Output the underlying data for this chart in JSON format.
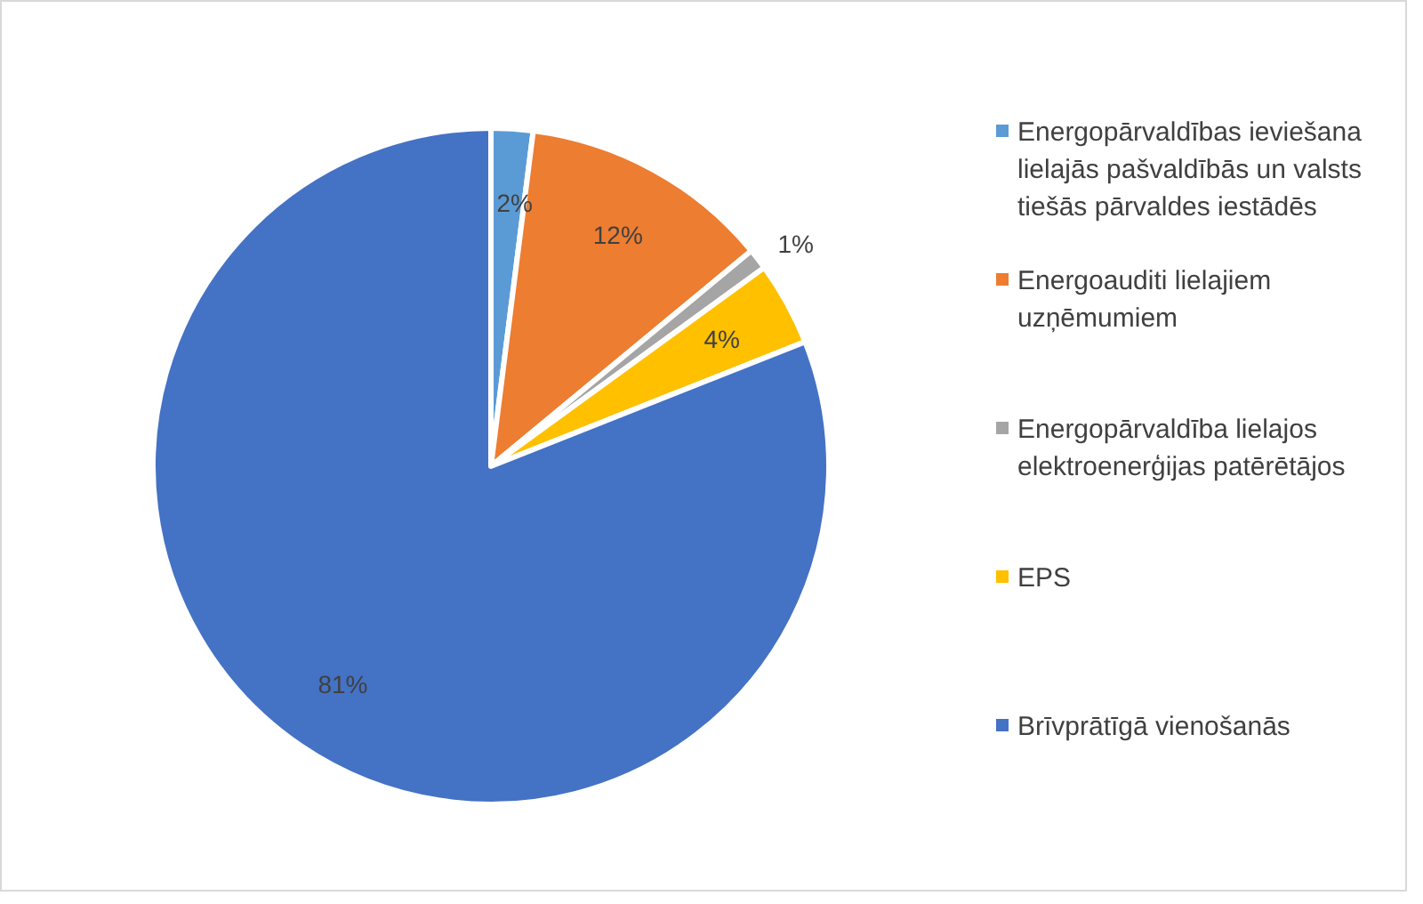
{
  "chart_data": {
    "type": "pie",
    "categories": [
      "Energopārvaldības ieviešana lielajās pašvaldībās un valsts tiešās pārvaldes iestādēs",
      "Energoauditi lielajiem uzņēmumiem",
      "Energopārvaldība lielajos elektroenerģijas patērētājos",
      "EPS",
      "Brīvprātīgā vienošanās"
    ],
    "values": [
      2,
      12,
      1,
      4,
      81
    ],
    "colors": [
      "#5b9bd5",
      "#ed7d31",
      "#a5a5a5",
      "#ffc000",
      "#4472c4"
    ],
    "value_labels": [
      "2%",
      "12%",
      "1%",
      "4%",
      "81%"
    ],
    "legend": "right"
  }
}
